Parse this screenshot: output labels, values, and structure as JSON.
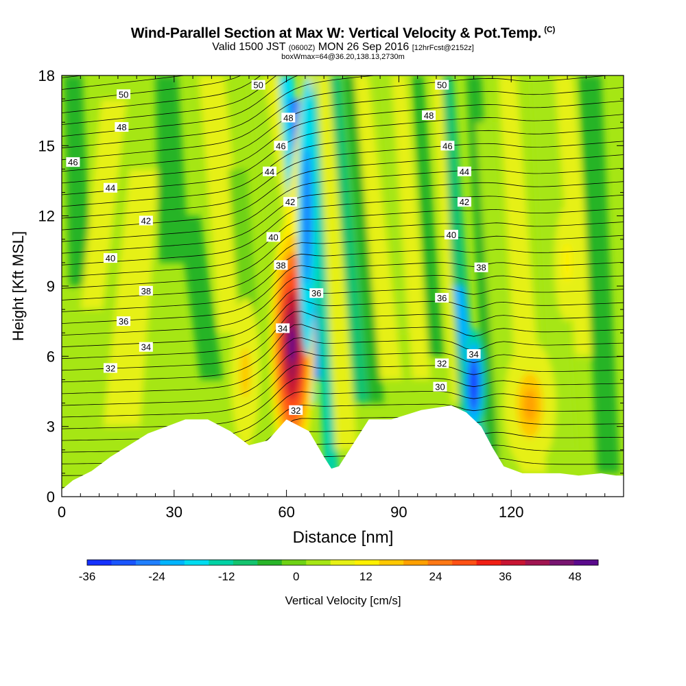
{
  "title": {
    "main": "Wind-Parallel Section at Max W: Vertical Velocity & Pot.Temp.",
    "copyright": "(C)",
    "valid_prefix": "Valid 1500 JST",
    "valid_utc": "(0600Z)",
    "valid_date": "MON 26 Sep 2016",
    "forecast": "[12hrFcst@2152z]",
    "box_wmax": "boxWmax=64@36.20,138.13,2730m"
  },
  "chart_data": {
    "type": "heatmap",
    "xlabel": "Distance [nm]",
    "ylabel": "Height [Kft MSL]",
    "xlim": [
      0,
      150
    ],
    "ylim": [
      0,
      18
    ],
    "x_ticks": [
      "0",
      "30",
      "60",
      "90",
      "120"
    ],
    "y_ticks": [
      "0",
      "3",
      "6",
      "9",
      "12",
      "15",
      "18"
    ],
    "colorbar": {
      "label": "Vertical Velocity [cm/s]",
      "range": [
        -36,
        52
      ],
      "tick_labels": [
        "-36",
        "-24",
        "-12",
        "0",
        "12",
        "24",
        "36",
        "48"
      ],
      "colors": [
        "#1430ff",
        "#1a55ff",
        "#1f7fff",
        "#00b4ff",
        "#00dcf0",
        "#00d2a5",
        "#14c36e",
        "#28b428",
        "#6ed214",
        "#a6e614",
        "#e6f014",
        "#fff000",
        "#ffc800",
        "#ffa000",
        "#ff7814",
        "#ff5014",
        "#f01e14",
        "#c81432",
        "#a01450",
        "#781470",
        "#5a0a8c"
      ]
    },
    "terrain_kft": [
      [
        0,
        0.3
      ],
      [
        3,
        0.7
      ],
      [
        8,
        1.1
      ],
      [
        13,
        1.7
      ],
      [
        18,
        2.2
      ],
      [
        23,
        2.7
      ],
      [
        28,
        3.0
      ],
      [
        33,
        3.3
      ],
      [
        39,
        3.3
      ],
      [
        45,
        2.8
      ],
      [
        50,
        2.2
      ],
      [
        55,
        2.4
      ],
      [
        60,
        3.3
      ],
      [
        66,
        2.8
      ],
      [
        70,
        1.7
      ],
      [
        72,
        1.2
      ],
      [
        74,
        1.3
      ],
      [
        78,
        2.3
      ],
      [
        82,
        3.3
      ],
      [
        88,
        3.3
      ],
      [
        92,
        3.5
      ],
      [
        96,
        3.7
      ],
      [
        100,
        3.8
      ],
      [
        104,
        3.9
      ],
      [
        108,
        3.6
      ],
      [
        112,
        3.0
      ],
      [
        115,
        2.1
      ],
      [
        118,
        1.3
      ],
      [
        123,
        1.0
      ],
      [
        133,
        1.0
      ],
      [
        138,
        0.9
      ],
      [
        144,
        1.0
      ],
      [
        148,
        0.9
      ],
      [
        150,
        0.9
      ]
    ],
    "velocity_features": [
      {
        "x": 61.5,
        "y_kft": 6.5,
        "peak_cms": 50,
        "sign": "updraft"
      },
      {
        "x": 49,
        "y_kft": 5.3,
        "peak_cms": 15,
        "sign": "updraft"
      },
      {
        "x": 125,
        "y_kft": 3.9,
        "peak_cms": 18,
        "sign": "updraft"
      },
      {
        "x": 135,
        "y_kft": 10,
        "peak_cms": 12,
        "sign": "updraft"
      },
      {
        "x": 64,
        "y_kft": 12,
        "peak_cms": -28,
        "sign": "downdraft"
      },
      {
        "x": 110,
        "y_kft": 4.8,
        "peak_cms": -36,
        "sign": "downdraft"
      },
      {
        "x": 82,
        "y_kft": 8,
        "peak_cms": -14,
        "sign": "downdraft"
      }
    ],
    "theta_contour_labels": [
      {
        "text": "50",
        "x": 16.5,
        "y_kft": 17.2
      },
      {
        "text": "48",
        "x": 16,
        "y_kft": 15.8
      },
      {
        "text": "46",
        "x": 3,
        "y_kft": 14.3
      },
      {
        "text": "44",
        "x": 13,
        "y_kft": 13.2
      },
      {
        "text": "42",
        "x": 22.5,
        "y_kft": 11.8
      },
      {
        "text": "40",
        "x": 13,
        "y_kft": 10.2
      },
      {
        "text": "38",
        "x": 22.5,
        "y_kft": 8.8
      },
      {
        "text": "36",
        "x": 16.5,
        "y_kft": 7.5
      },
      {
        "text": "34",
        "x": 22.5,
        "y_kft": 6.4
      },
      {
        "text": "32",
        "x": 13,
        "y_kft": 5.5
      },
      {
        "text": "50",
        "x": 52.5,
        "y_kft": 17.6
      },
      {
        "text": "48",
        "x": 60.5,
        "y_kft": 16.2
      },
      {
        "text": "46",
        "x": 58.5,
        "y_kft": 15.0
      },
      {
        "text": "44",
        "x": 55.5,
        "y_kft": 13.9
      },
      {
        "text": "42",
        "x": 61,
        "y_kft": 12.6
      },
      {
        "text": "40",
        "x": 56.5,
        "y_kft": 11.1
      },
      {
        "text": "38",
        "x": 58.5,
        "y_kft": 9.9
      },
      {
        "text": "36",
        "x": 68,
        "y_kft": 8.7
      },
      {
        "text": "34",
        "x": 59,
        "y_kft": 7.2
      },
      {
        "text": "32",
        "x": 62.5,
        "y_kft": 3.7
      },
      {
        "text": "50",
        "x": 101.5,
        "y_kft": 17.6
      },
      {
        "text": "48",
        "x": 98,
        "y_kft": 16.3
      },
      {
        "text": "46",
        "x": 103,
        "y_kft": 15.0
      },
      {
        "text": "44",
        "x": 107.5,
        "y_kft": 13.9
      },
      {
        "text": "42",
        "x": 107.5,
        "y_kft": 12.6
      },
      {
        "text": "40",
        "x": 104,
        "y_kft": 11.2
      },
      {
        "text": "38",
        "x": 112,
        "y_kft": 9.8
      },
      {
        "text": "36",
        "x": 101.5,
        "y_kft": 8.5
      },
      {
        "text": "34",
        "x": 110,
        "y_kft": 6.1
      },
      {
        "text": "32",
        "x": 101.5,
        "y_kft": 5.7
      },
      {
        "text": "30",
        "x": 101,
        "y_kft": 4.7
      }
    ]
  }
}
